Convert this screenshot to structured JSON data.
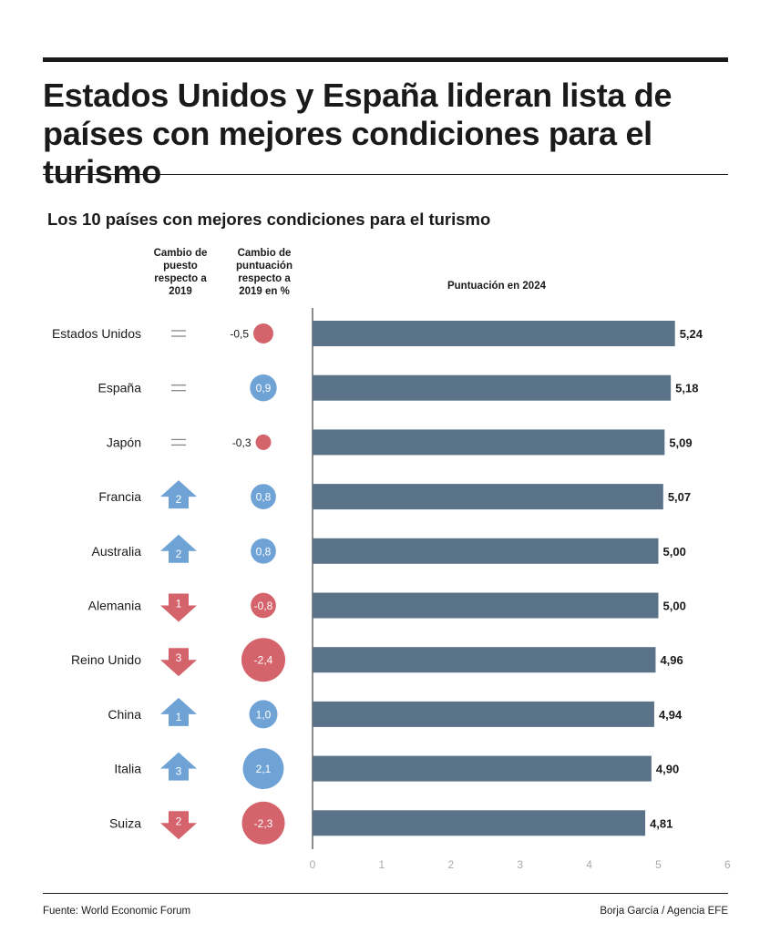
{
  "header": {
    "title": "Estados Unidos y España lideran lista de países con mejores condiciones para el turismo",
    "subtitle": "Los 10 países con mejores condiciones para el turismo"
  },
  "columns": {
    "rank_change": "Cambio de puesto respecto a 2019",
    "score_change": "Cambio de puntuación respecto a 2019 en %",
    "score": "Puntuación en 2024"
  },
  "footer": {
    "source": "Fuente: World Economic Forum",
    "credit": "Borja García / Agencia EFE"
  },
  "colors": {
    "bar": "#5b7389",
    "up": "#6fa3d6",
    "down": "#d4636c",
    "text": "#1a1a1a",
    "axis_tick": "#aaaaaa"
  },
  "chart_data": {
    "type": "bar",
    "orientation": "horizontal",
    "title": "Los 10 países con mejores condiciones para el turismo",
    "xlabel": "Puntuación en 2024",
    "xlim": [
      0,
      6
    ],
    "xticks": [
      0,
      1,
      2,
      3,
      4,
      5,
      6
    ],
    "grid": false,
    "categories": [
      "Estados Unidos",
      "España",
      "Japón",
      "Francia",
      "Australia",
      "Alemania",
      "Reino Unido",
      "China",
      "Italia",
      "Suiza"
    ],
    "values": [
      5.24,
      5.18,
      5.09,
      5.07,
      5.0,
      5.0,
      4.96,
      4.94,
      4.9,
      4.81
    ],
    "value_labels": [
      "5,24",
      "5,18",
      "5,09",
      "5,07",
      "5,00",
      "5,00",
      "4,96",
      "4,94",
      "4,90",
      "4,81"
    ],
    "rank_change": [
      0,
      0,
      0,
      2,
      2,
      -1,
      -3,
      1,
      3,
      -2
    ],
    "rank_change_labels": [
      "",
      "",
      "",
      "2",
      "2",
      "1",
      "3",
      "1",
      "3",
      "2"
    ],
    "score_change_pct": [
      -0.5,
      0.9,
      -0.3,
      0.8,
      0.8,
      -0.8,
      -2.4,
      1.0,
      2.1,
      -2.3
    ],
    "score_change_labels": [
      "-0,5",
      "0,9",
      "-0,3",
      "0,8",
      "0,8",
      "-0,8",
      "-2,4",
      "1,0",
      "2,1",
      "-2,3"
    ]
  }
}
